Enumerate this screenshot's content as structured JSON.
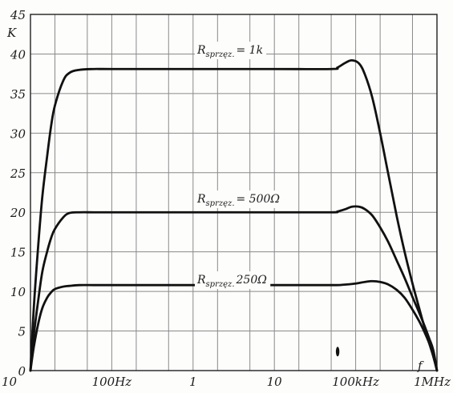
{
  "chart_data": {
    "type": "line",
    "xscale": "log",
    "xlim": [
      10,
      1000000
    ],
    "ylim": [
      0,
      45
    ],
    "ylabel": "K",
    "xlabel": "f",
    "grid": true,
    "xticks": [
      {
        "value": 10,
        "label": "10"
      },
      {
        "value": 100,
        "label": "100Hz"
      },
      {
        "value": 1000,
        "label": "1"
      },
      {
        "value": 10000,
        "label": "10"
      },
      {
        "value": 100000,
        "label": "100kHz"
      },
      {
        "value": 1000000,
        "label": "1MHz"
      }
    ],
    "yticks": [
      {
        "value": 0,
        "label": "0"
      },
      {
        "value": 5,
        "label": "5"
      },
      {
        "value": 10,
        "label": "10"
      },
      {
        "value": 15,
        "label": "15"
      },
      {
        "value": 20,
        "label": "20"
      },
      {
        "value": 25,
        "label": "25"
      },
      {
        "value": 30,
        "label": "30"
      },
      {
        "value": 35,
        "label": "35"
      },
      {
        "value": 40,
        "label": "40"
      },
      {
        "value": 45,
        "label": "45"
      }
    ],
    "series": [
      {
        "label_main": "R",
        "label_sub": "sprzęz.",
        "label_value": "= 1k",
        "x": [
          10,
          11,
          12.5,
          14,
          16,
          18,
          20,
          25,
          30,
          40,
          60,
          100,
          1000,
          10000,
          50000,
          60000,
          75000,
          90000,
          110000,
          130000,
          160000,
          200000,
          250000,
          320000,
          400000,
          500000,
          600000,
          700000,
          800000,
          900000,
          1000000
        ],
        "y": [
          0,
          8,
          16,
          22,
          27,
          31,
          33.5,
          36.5,
          37.6,
          38.0,
          38.1,
          38.1,
          38.1,
          38.1,
          38.1,
          38.3,
          38.9,
          39.2,
          38.8,
          37.4,
          34.5,
          30.0,
          25.0,
          19.5,
          15.0,
          11.0,
          8.0,
          5.5,
          3.5,
          1.8,
          0
        ]
      },
      {
        "label_main": "R",
        "label_sub": "sprzęz.",
        "label_value": "= 500Ω",
        "x": [
          10,
          11,
          12.5,
          14,
          16,
          18,
          20,
          25,
          30,
          40,
          60,
          100,
          1000,
          10000,
          50000,
          60000,
          75000,
          90000,
          110000,
          130000,
          160000,
          200000,
          250000,
          320000,
          400000,
          500000,
          600000,
          700000,
          800000,
          900000,
          1000000
        ],
        "y": [
          0,
          4.5,
          9,
          12.5,
          15,
          16.8,
          17.9,
          19.3,
          19.9,
          20.0,
          20.0,
          20.0,
          20.0,
          20.0,
          20.0,
          20.1,
          20.4,
          20.7,
          20.7,
          20.4,
          19.6,
          18.1,
          16.3,
          13.9,
          11.7,
          9.3,
          7.4,
          5.7,
          4.1,
          2.6,
          0
        ]
      },
      {
        "label_main": "R",
        "label_sub": "sprzęz.",
        "label_value": "250Ω",
        "x": [
          10,
          11,
          12.5,
          14,
          16,
          18,
          20,
          25,
          30,
          40,
          60,
          100,
          1000,
          10000,
          50000,
          70000,
          100000,
          130000,
          160000,
          200000,
          250000,
          320000,
          400000,
          500000,
          600000,
          700000,
          800000,
          900000,
          1000000
        ],
        "y": [
          0,
          3,
          6,
          7.9,
          9.2,
          9.9,
          10.3,
          10.6,
          10.7,
          10.8,
          10.8,
          10.8,
          10.8,
          10.8,
          10.8,
          10.85,
          11.0,
          11.2,
          11.3,
          11.2,
          10.9,
          10.2,
          9.2,
          7.7,
          6.3,
          4.9,
          3.5,
          2.1,
          0
        ]
      }
    ]
  },
  "marks": {
    "small_mark_value": {
      "x": 60000,
      "y": 2.4
    }
  }
}
